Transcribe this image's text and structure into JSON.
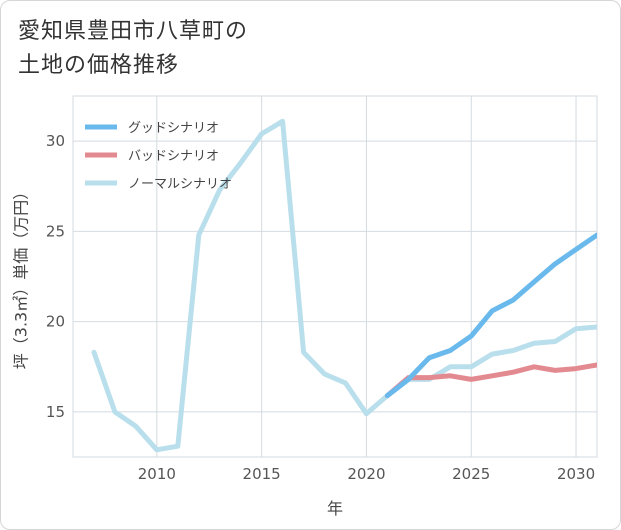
{
  "chart_data": {
    "type": "line",
    "title_lines": [
      "愛知県豊田市八草町の",
      "土地の価格推移"
    ],
    "xlabel": "年",
    "ylabel": "坪（3.3㎡）単価（万円）",
    "xlim": [
      2006,
      2031
    ],
    "ylim": [
      12.5,
      32.5
    ],
    "x_ticks": [
      2010,
      2015,
      2020,
      2025,
      2030
    ],
    "y_ticks": [
      15,
      20,
      25,
      30
    ],
    "grid": true,
    "legend_position": "top-left",
    "series": [
      {
        "name": "グッドシナリオ",
        "color": "#6ab9ec",
        "x": [
          2021,
          2022,
          2023,
          2024,
          2025,
          2026,
          2027,
          2028,
          2029,
          2030,
          2031
        ],
        "y": [
          15.9,
          16.8,
          18.0,
          18.4,
          19.2,
          20.6,
          21.2,
          22.2,
          23.2,
          24.0,
          24.8
        ]
      },
      {
        "name": "バッドシナリオ",
        "color": "#e38a91",
        "x": [
          2021,
          2022,
          2023,
          2024,
          2025,
          2026,
          2027,
          2028,
          2029,
          2030,
          2031
        ],
        "y": [
          15.9,
          16.9,
          16.9,
          17.0,
          16.8,
          17.0,
          17.2,
          17.5,
          17.3,
          17.4,
          17.6
        ]
      },
      {
        "name": "ノーマルシナリオ",
        "color": "#b9dfec",
        "x": [
          2007,
          2008,
          2009,
          2010,
          2011,
          2012,
          2013,
          2014,
          2015,
          2016,
          2017,
          2018,
          2019,
          2020,
          2021,
          2022,
          2023,
          2024,
          2025,
          2026,
          2027,
          2028,
          2029,
          2030,
          2031
        ],
        "y": [
          18.3,
          15.0,
          14.2,
          12.9,
          13.1,
          24.8,
          27.3,
          28.8,
          30.4,
          31.1,
          18.3,
          17.1,
          16.6,
          14.9,
          15.9,
          16.8,
          16.8,
          17.5,
          17.5,
          18.2,
          18.4,
          18.8,
          18.9,
          19.6,
          19.7
        ]
      }
    ]
  }
}
